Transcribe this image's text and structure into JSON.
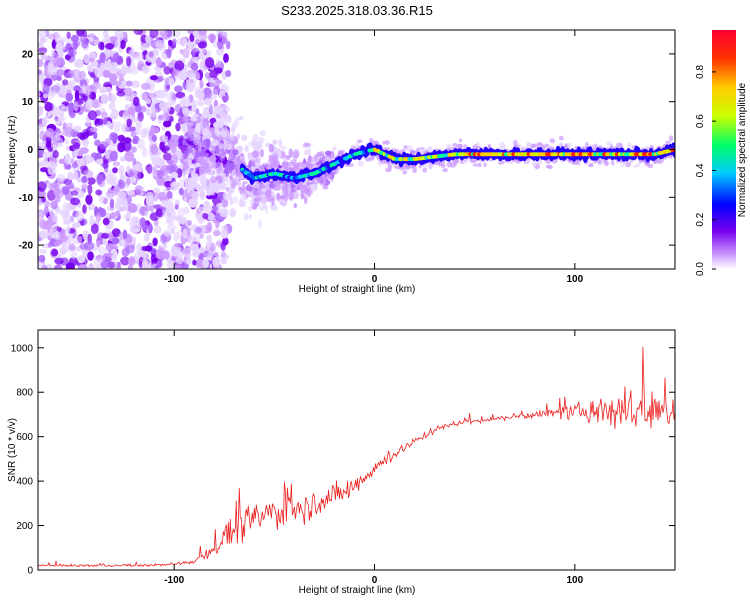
{
  "title": "S233.2025.318.03.36.R15",
  "chart_data": [
    {
      "type": "heatmap",
      "xlabel": "Height of straight line (km)",
      "ylabel": "Frequency (Hz)",
      "xlim": [
        -168,
        150
      ],
      "ylim": [
        -25,
        25
      ],
      "x_ticks": [
        -100,
        0,
        100
      ],
      "x_tick_labels": [
        "-100",
        "0",
        "100"
      ],
      "y_ticks": [
        -20,
        -10,
        0,
        10,
        20
      ],
      "y_tick_labels": [
        "-20",
        "-10",
        "0",
        "10",
        "20"
      ],
      "colorbar": {
        "label": "Normalized spectral amplitude",
        "range": [
          0,
          0.97
        ],
        "ticks": [
          0,
          0.2,
          0.4,
          0.6,
          0.8
        ],
        "tick_labels": [
          "0.0",
          "0.2",
          "0.4",
          "0.6",
          "0.8"
        ],
        "colormap": [
          "#ffffff",
          "#cc99ff",
          "#7700ee",
          "#0000ff",
          "#00ccff",
          "#00ff66",
          "#ccff00",
          "#ffcc00",
          "#ff0000"
        ]
      },
      "ridge": {
        "description_points_x": [
          -90,
          -80,
          -70,
          -60,
          -50,
          -40,
          -30,
          -20,
          -10,
          0,
          10,
          20,
          40,
          60,
          80,
          100,
          120,
          140,
          150
        ],
        "description_points_freq_hz": [
          1,
          -1,
          -3,
          -6,
          -5,
          -6,
          -5,
          -3,
          -1,
          0,
          -2,
          -2,
          -1,
          -1,
          -1,
          -1,
          -1,
          -1,
          0
        ]
      }
    },
    {
      "type": "line",
      "xlabel": "Height of straight line (km)",
      "ylabel": "SNR (10 * v/v)",
      "xlim": [
        -168,
        150
      ],
      "ylim": [
        0,
        1080
      ],
      "x_ticks": [
        -100,
        0,
        100
      ],
      "x_tick_labels": [
        "-100",
        "0",
        "100"
      ],
      "y_ticks": [
        0,
        200,
        400,
        600,
        800,
        1000
      ],
      "y_tick_labels": [
        "0",
        "200",
        "400",
        "600",
        "800",
        "1000"
      ],
      "line_color": "#ee2222",
      "envelope": {
        "x": [
          -168,
          -120,
          -100,
          -90,
          -80,
          -70,
          -60,
          -50,
          -40,
          -30,
          -20,
          -10,
          0,
          10,
          20,
          30,
          40,
          60,
          80,
          100,
          110,
          120,
          130,
          140,
          150
        ],
        "y": [
          20,
          20,
          25,
          40,
          100,
          180,
          230,
          260,
          280,
          300,
          330,
          380,
          460,
          520,
          580,
          630,
          660,
          680,
          700,
          710,
          720,
          720,
          720,
          700,
          720
        ],
        "noise": [
          10,
          10,
          10,
          20,
          60,
          110,
          140,
          150,
          130,
          120,
          110,
          90,
          60,
          40,
          30,
          25,
          20,
          20,
          30,
          60,
          110,
          160,
          190,
          170,
          150
        ]
      }
    }
  ]
}
